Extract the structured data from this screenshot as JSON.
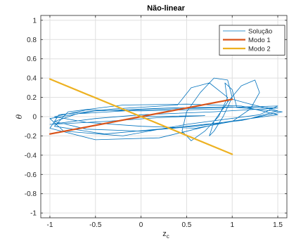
{
  "chart_data": {
    "type": "line",
    "title": "Não-linear",
    "xlabel_main": "z",
    "xlabel_sub": "c",
    "ylabel": "θ",
    "xlim": [
      -1.1,
      1.6
    ],
    "ylim": [
      -1.05,
      1.05
    ],
    "grid": true,
    "legend_position": "top-right",
    "x_ticks": [
      -1,
      -0.5,
      0,
      0.5,
      1,
      1.5
    ],
    "x_tick_labels": [
      "-1",
      "-0.5",
      "0",
      "0.5",
      "1",
      "1.5"
    ],
    "y_ticks": [
      -1,
      -0.8,
      -0.6,
      -0.4,
      -0.2,
      0,
      0.2,
      0.4,
      0.6,
      0.8,
      1
    ],
    "y_tick_labels": [
      "-1",
      "-0.8",
      "-0.6",
      "-0.4",
      "-0.2",
      "0",
      "0.2",
      "0.4",
      "0.6",
      "0.8",
      "1"
    ],
    "series": [
      {
        "name": "Solução",
        "color": "#0072BD",
        "style": "thin-line",
        "points": [
          [
            0,
            0
          ],
          [
            0.45,
            0.08
          ],
          [
            1.0,
            0.18
          ],
          [
            1.2,
            0.13
          ],
          [
            1.5,
            0.06
          ],
          [
            1.2,
            -0.02
          ],
          [
            0.6,
            -0.1
          ],
          [
            0.0,
            -0.15
          ],
          [
            -0.6,
            -0.13
          ],
          [
            -0.95,
            -0.05
          ],
          [
            -0.7,
            0.03
          ],
          [
            0.0,
            0.07
          ],
          [
            0.7,
            0.09
          ],
          [
            1.5,
            0.11
          ],
          [
            1.3,
            0.02
          ],
          [
            0.5,
            -0.08
          ],
          [
            -0.2,
            -0.2
          ],
          [
            -0.85,
            -0.15
          ],
          [
            -1.0,
            -0.02
          ],
          [
            -0.5,
            0.06
          ],
          [
            0.3,
            0.09
          ],
          [
            1.0,
            0.1
          ],
          [
            1.55,
            0.05
          ],
          [
            1.1,
            -0.04
          ],
          [
            0.3,
            -0.12
          ],
          [
            -0.4,
            -0.18
          ],
          [
            -0.95,
            -0.1
          ],
          [
            -0.8,
            0.05
          ],
          [
            -0.2,
            0.12
          ],
          [
            0.5,
            0.13
          ],
          [
            1.1,
            0.11
          ],
          [
            1.5,
            0.02
          ],
          [
            0.9,
            -0.06
          ],
          [
            0.2,
            -0.22
          ],
          [
            -0.5,
            -0.24
          ],
          [
            -1.0,
            -0.12
          ],
          [
            -0.9,
            0.02
          ],
          [
            -0.3,
            0.08
          ],
          [
            0.4,
            0.12
          ],
          [
            0.55,
            0.3
          ],
          [
            0.75,
            0.35
          ],
          [
            0.95,
            0.2
          ],
          [
            0.85,
            0.0
          ],
          [
            0.7,
            -0.15
          ],
          [
            0.55,
            -0.25
          ],
          [
            0.45,
            -0.15
          ],
          [
            0.5,
            0.05
          ],
          [
            0.65,
            0.25
          ],
          [
            0.8,
            0.4
          ],
          [
            0.95,
            0.38
          ],
          [
            1.0,
            0.2
          ],
          [
            0.9,
            0.0
          ],
          [
            0.8,
            -0.15
          ],
          [
            0.75,
            -0.2
          ],
          [
            0.8,
            -0.05
          ],
          [
            0.95,
            0.15
          ],
          [
            1.1,
            0.32
          ],
          [
            1.25,
            0.38
          ],
          [
            1.3,
            0.25
          ],
          [
            1.2,
            0.08
          ],
          [
            1.0,
            -0.05
          ],
          [
            0.6,
            -0.12
          ],
          [
            0.0,
            -0.1
          ],
          [
            -0.6,
            -0.06
          ],
          [
            -0.95,
            0.0
          ],
          [
            -0.6,
            0.07
          ],
          [
            0.0,
            0.06
          ],
          [
            0.5,
            0.07
          ],
          [
            0.9,
            0.08
          ],
          [
            0.95,
            0.15
          ],
          [
            0.92,
            0.35
          ],
          [
            1.0,
            0.28
          ],
          [
            1.05,
            0.1
          ],
          [
            1.5,
            0.09
          ],
          [
            0.8,
            0.05
          ],
          [
            0.0,
            0.02
          ],
          [
            -0.5,
            -0.02
          ],
          [
            -1.0,
            -0.08
          ],
          [
            -0.4,
            -0.05
          ],
          [
            0.2,
            -0.01
          ],
          [
            0.7,
            0.01
          ],
          [
            0.0,
            0.0
          ]
        ]
      },
      {
        "name": "Modo 1",
        "color": "#D95319",
        "style": "thick-line",
        "points": [
          [
            -1,
            -0.18
          ],
          [
            1,
            0.18
          ]
        ]
      },
      {
        "name": "Modo 2",
        "color": "#EDB120",
        "style": "thick-line",
        "points": [
          [
            -1,
            0.39
          ],
          [
            1,
            -0.39
          ]
        ]
      }
    ]
  }
}
